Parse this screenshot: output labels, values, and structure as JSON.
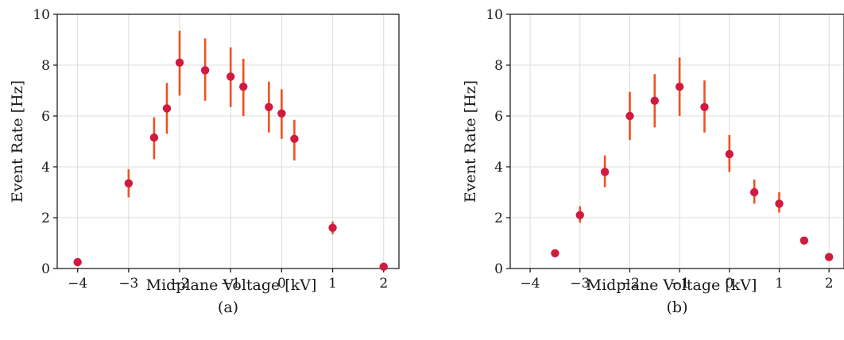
{
  "chart_data": [
    {
      "type": "scatter",
      "panel": "a",
      "caption": "(a)",
      "xlabel": "Midplane Voltage [kV]",
      "ylabel": "Event Rate [Hz]",
      "xlim": [
        -4.4,
        2.3
      ],
      "ylim": [
        0,
        10
      ],
      "xticks": [
        -4,
        -3,
        -2,
        -1,
        0,
        1,
        2
      ],
      "yticks": [
        0,
        2,
        4,
        6,
        8,
        10
      ],
      "grid": true,
      "marker_color": "#d11a3f",
      "errorbar_color": "#f0501e",
      "points": [
        {
          "x": -4,
          "y": 0.25,
          "lo": 0.22,
          "hi": 0.28
        },
        {
          "x": -3,
          "y": 3.35,
          "lo": 2.8,
          "hi": 3.9
        },
        {
          "x": -2.5,
          "y": 5.15,
          "lo": 4.3,
          "hi": 5.95
        },
        {
          "x": -2.25,
          "y": 6.3,
          "lo": 5.3,
          "hi": 7.3
        },
        {
          "x": -2,
          "y": 8.1,
          "lo": 6.8,
          "hi": 9.35
        },
        {
          "x": -1.5,
          "y": 7.8,
          "lo": 6.6,
          "hi": 9.05
        },
        {
          "x": -1,
          "y": 7.55,
          "lo": 6.35,
          "hi": 8.7
        },
        {
          "x": -0.75,
          "y": 7.15,
          "lo": 6.0,
          "hi": 8.25
        },
        {
          "x": -0.25,
          "y": 6.35,
          "lo": 5.35,
          "hi": 7.35
        },
        {
          "x": 0,
          "y": 6.1,
          "lo": 5.1,
          "hi": 7.05
        },
        {
          "x": 0.25,
          "y": 5.1,
          "lo": 4.25,
          "hi": 5.85
        },
        {
          "x": 1,
          "y": 1.6,
          "lo": 1.35,
          "hi": 1.85
        },
        {
          "x": 2,
          "y": 0.07,
          "lo": 0.05,
          "hi": 0.09
        }
      ]
    },
    {
      "type": "scatter",
      "panel": "b",
      "caption": "(b)",
      "xlabel": "Midplane Voltage [kV]",
      "ylabel": "Event Rate [Hz]",
      "xlim": [
        -4.4,
        2.3
      ],
      "ylim": [
        0,
        10
      ],
      "xticks": [
        -4,
        -3,
        -2,
        -1,
        0,
        1,
        2
      ],
      "yticks": [
        0,
        2,
        4,
        6,
        8,
        10
      ],
      "grid": true,
      "marker_color": "#d11a3f",
      "errorbar_color": "#f0501e",
      "points": [
        {
          "x": -3.5,
          "y": 0.6,
          "lo": 0.55,
          "hi": 0.65
        },
        {
          "x": -3,
          "y": 2.1,
          "lo": 1.8,
          "hi": 2.45
        },
        {
          "x": -2.5,
          "y": 3.8,
          "lo": 3.2,
          "hi": 4.45
        },
        {
          "x": -2,
          "y": 6.0,
          "lo": 5.05,
          "hi": 6.95
        },
        {
          "x": -1.5,
          "y": 6.6,
          "lo": 5.55,
          "hi": 7.65
        },
        {
          "x": -1,
          "y": 7.15,
          "lo": 6.0,
          "hi": 8.3
        },
        {
          "x": -0.5,
          "y": 6.35,
          "lo": 5.35,
          "hi": 7.4
        },
        {
          "x": 0,
          "y": 4.5,
          "lo": 3.8,
          "hi": 5.25
        },
        {
          "x": 0.5,
          "y": 3.0,
          "lo": 2.55,
          "hi": 3.5
        },
        {
          "x": 1,
          "y": 2.55,
          "lo": 2.2,
          "hi": 3.0
        },
        {
          "x": 1.5,
          "y": 1.1,
          "lo": 1.0,
          "hi": 1.2
        },
        {
          "x": 2,
          "y": 0.45,
          "lo": 0.4,
          "hi": 0.5
        }
      ]
    }
  ]
}
